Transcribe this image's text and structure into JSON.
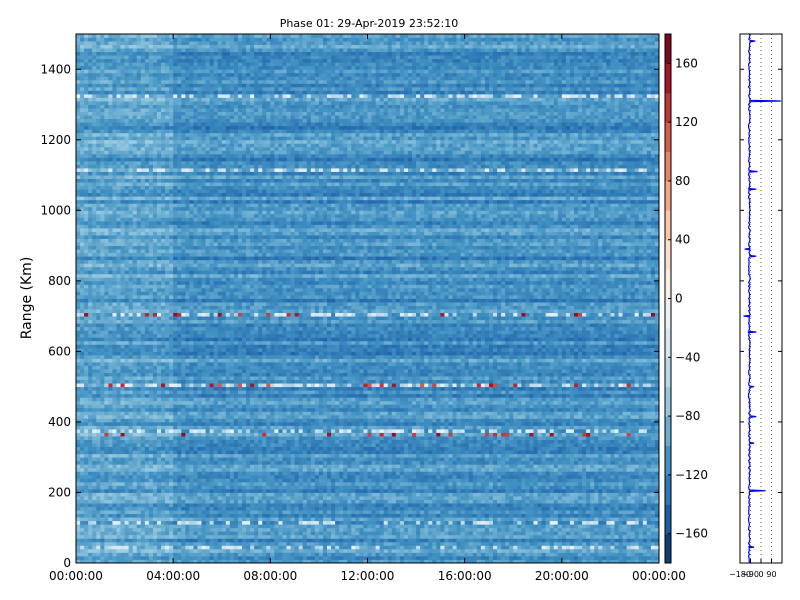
{
  "chart_data": [
    {
      "type": "heatmap",
      "title": "Phase 01: 29-Apr-2019 23:52:10",
      "xlabel": "",
      "ylabel": "Range (Km)",
      "xlim": [
        "00:00:00",
        "00:00:00"
      ],
      "x_ticks": [
        "00:00:00",
        "04:00:00",
        "08:00:00",
        "12:00:00",
        "16:00:00",
        "20:00:00",
        "00:00:00"
      ],
      "ylim": [
        0,
        1500
      ],
      "y_ticks": [
        0,
        200,
        400,
        600,
        800,
        1000,
        1200,
        1400
      ],
      "colorbar": {
        "range": [
          -180,
          180
        ],
        "ticks": [
          -160,
          -120,
          -80,
          -40,
          0,
          40,
          80,
          120,
          160
        ],
        "tick_labels": [
          "−160",
          "−120",
          "−80",
          "−40",
          "0",
          "40",
          "80",
          "120",
          "160"
        ],
        "colormap": "RdBu_r"
      },
      "time_columns": 144,
      "range_rows": 150,
      "range_step_km": 10,
      "typical_value": -110,
      "column_change_hours": [
        4.0
      ],
      "bright_range_rows_km": [
        40,
        110,
        370,
        500,
        700,
        1110,
        1320
      ],
      "outlier_range_rows_km": [
        {
          "km": 360,
          "value": 160
        },
        {
          "km": 500,
          "value": 150
        },
        {
          "km": 700,
          "value": 160
        }
      ]
    },
    {
      "type": "line",
      "title": "",
      "xlabel": "",
      "ylabel": "",
      "xlim": [
        -180,
        180
      ],
      "x_ticks": [
        "−180",
        "−90",
        "0",
        "90"
      ],
      "ylim": [
        0,
        1500
      ],
      "grid": true,
      "baseline_value": -100,
      "spikes": [
        {
          "km": 45,
          "value": -60
        },
        {
          "km": 205,
          "value": 40
        },
        {
          "km": 340,
          "value": -60
        },
        {
          "km": 415,
          "value": -40
        },
        {
          "km": 500,
          "value": -60
        },
        {
          "km": 655,
          "value": -40
        },
        {
          "km": 700,
          "value": -150
        },
        {
          "km": 870,
          "value": -40
        },
        {
          "km": 890,
          "value": -140
        },
        {
          "km": 1060,
          "value": -40
        },
        {
          "km": 1110,
          "value": -30
        },
        {
          "km": 1310,
          "value": 170
        },
        {
          "km": 1480,
          "value": -50
        }
      ]
    }
  ]
}
